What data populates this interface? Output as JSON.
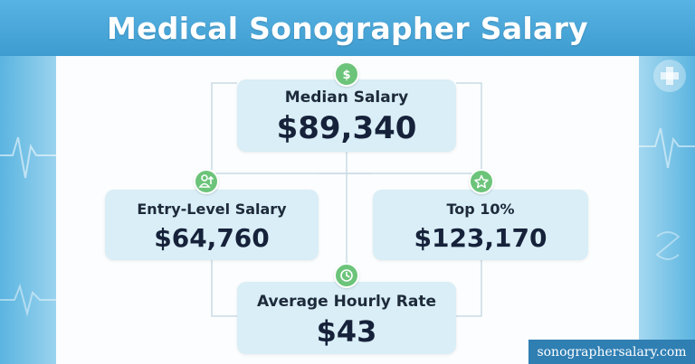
{
  "header": {
    "title": "Medical Sonographer Salary"
  },
  "diagram": {
    "median": {
      "label": "Median Salary",
      "value": "$89,340",
      "icon": "dollar-icon"
    },
    "entry_level": {
      "label": "Entry-Level Salary",
      "value": "$64,760",
      "icon": "person-growth-icon"
    },
    "top_10": {
      "label": "Top 10%",
      "value": "$123,170",
      "icon": "star-icon"
    },
    "hourly": {
      "label": "Average Hourly Rate",
      "value": "$43",
      "icon": "clock-icon"
    }
  },
  "footer": {
    "watermark": "sonographersalary.com"
  },
  "colors": {
    "banner": "#4fa9d9",
    "box": "#d9eef6",
    "badge": "#6cc47a",
    "text": "#16213a"
  }
}
